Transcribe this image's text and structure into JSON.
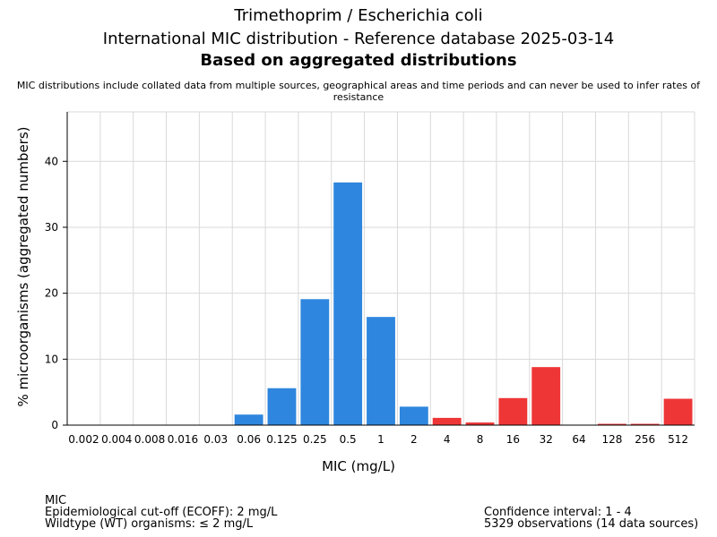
{
  "titles": {
    "line1": "Trimethoprim / Escherichia coli",
    "line2": "International MIC distribution - Reference database 2025-03-14",
    "line3": "Based on aggregated distributions",
    "note": "MIC distributions include collated data from multiple sources, geographical areas and time periods and can never be used to infer rates of resistance"
  },
  "footer": {
    "left": [
      "MIC",
      "Epidemiological cut-off (ECOFF): 2 mg/L",
      "Wildtype (WT) organisms: ≤ 2 mg/L"
    ],
    "right": [
      "Confidence interval: 1 - 4",
      "5329 observations (14 data sources)"
    ]
  },
  "colors": {
    "wildtype": "#2e86de",
    "non_wildtype": "#ee3636",
    "grid": "#d9d9d9"
  },
  "chart_data": {
    "type": "bar",
    "title": "",
    "xlabel": "MIC (mg/L)",
    "ylabel": "% microorganisms (aggregated numbers)",
    "categories": [
      "0.002",
      "0.004",
      "0.008",
      "0.016",
      "0.03",
      "0.06",
      "0.125",
      "0.25",
      "0.5",
      "1",
      "2",
      "4",
      "8",
      "16",
      "32",
      "64",
      "128",
      "256",
      "512"
    ],
    "values": [
      0,
      0,
      0,
      0,
      0,
      1.6,
      5.6,
      19.1,
      36.8,
      16.4,
      2.8,
      1.1,
      0.4,
      4.1,
      8.8,
      0,
      0.2,
      0.2,
      4.0
    ],
    "bar_group": [
      "wt",
      "wt",
      "wt",
      "wt",
      "wt",
      "wt",
      "wt",
      "wt",
      "wt",
      "wt",
      "wt",
      "nwt",
      "nwt",
      "nwt",
      "nwt",
      "nwt",
      "nwt",
      "nwt",
      "nwt"
    ],
    "yticks": [
      0,
      10,
      20,
      30,
      40
    ],
    "ylim": [
      0,
      47.5
    ],
    "grid": true
  }
}
